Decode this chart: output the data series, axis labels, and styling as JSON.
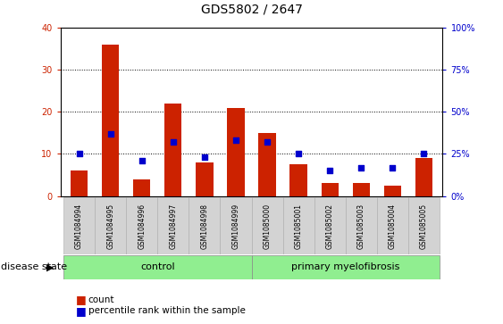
{
  "title": "GDS5802 / 2647",
  "samples": [
    "GSM1084994",
    "GSM1084995",
    "GSM1084996",
    "GSM1084997",
    "GSM1084998",
    "GSM1084999",
    "GSM1085000",
    "GSM1085001",
    "GSM1085002",
    "GSM1085003",
    "GSM1085004",
    "GSM1085005"
  ],
  "counts": [
    6,
    36,
    4,
    22,
    8,
    21,
    15,
    7.5,
    3,
    3,
    2.5,
    9
  ],
  "percentiles": [
    25,
    37,
    21,
    32,
    23,
    33,
    32,
    25,
    15,
    17,
    17,
    25
  ],
  "ylim_left": [
    0,
    40
  ],
  "ylim_right": [
    0,
    100
  ],
  "yticks_left": [
    0,
    10,
    20,
    30,
    40
  ],
  "yticks_right": [
    0,
    25,
    50,
    75,
    100
  ],
  "bar_color": "#cc2200",
  "dot_color": "#0000cc",
  "gray_bg": "#d3d3d3",
  "green_bg": "#90ee90",
  "plot_bg": "#ffffff",
  "grid_color": "#000000",
  "disease_state_label": "disease state",
  "legend_count_label": "count",
  "legend_pct_label": "percentile rank within the sample",
  "title_fontsize": 10,
  "tick_fontsize": 7,
  "label_fontsize": 8,
  "sample_fontsize": 5.5,
  "group_fontsize": 8
}
